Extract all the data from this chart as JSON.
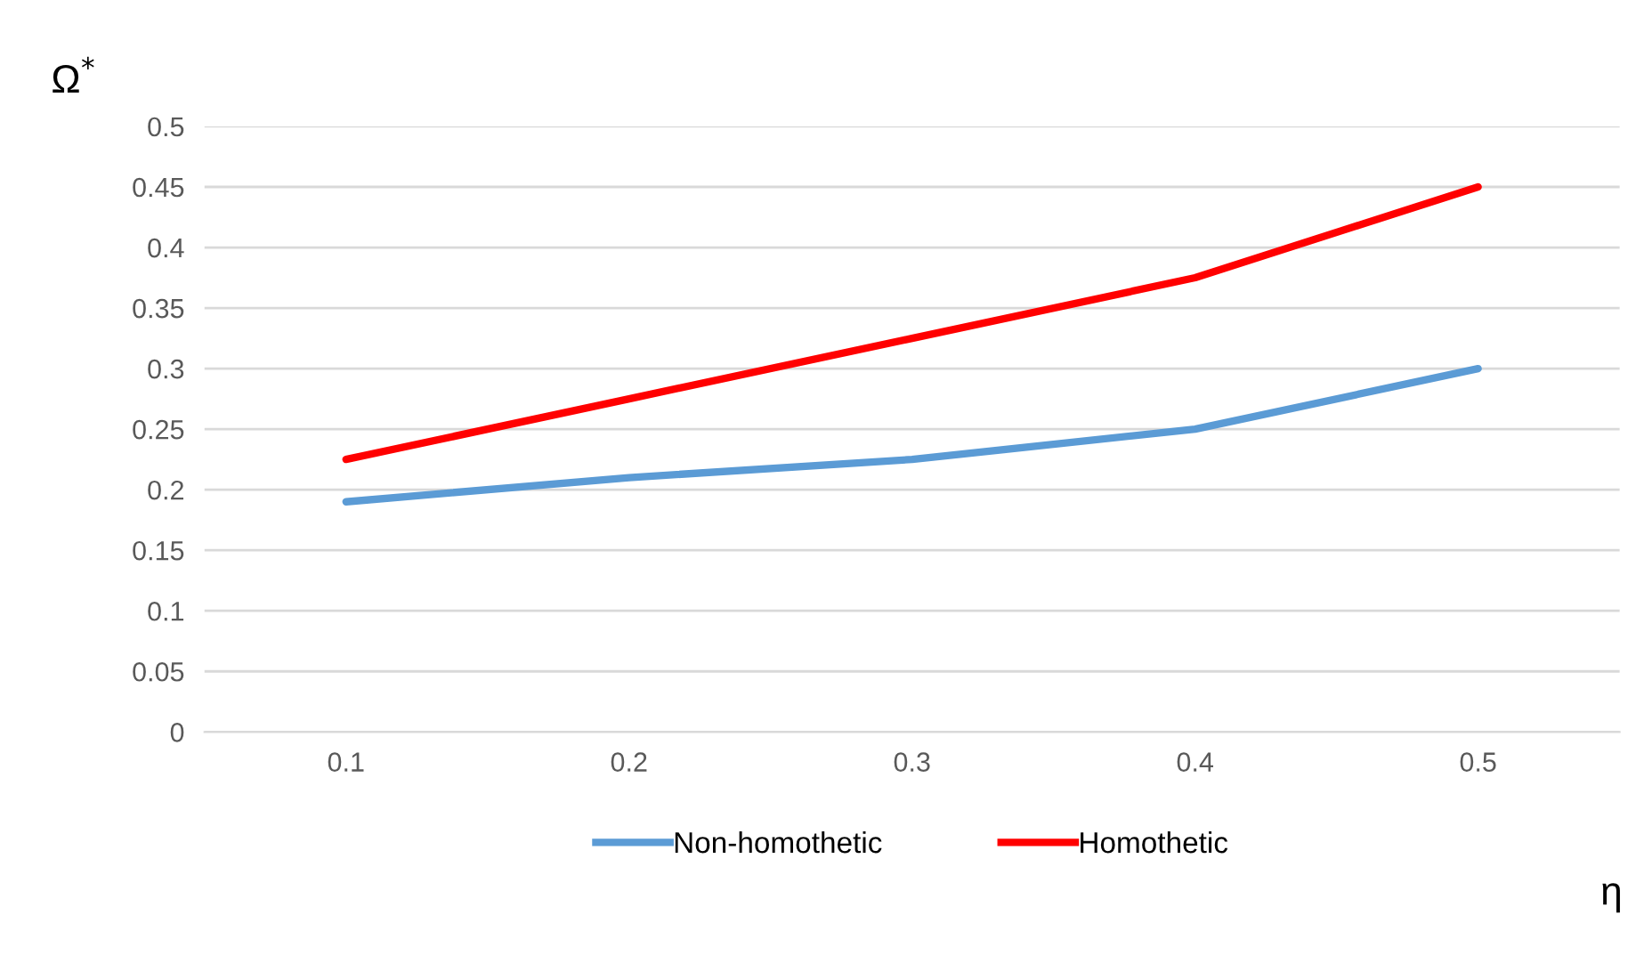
{
  "chart_data": {
    "type": "line",
    "ylabel": "Ω$^{*}$",
    "xlabel": "η",
    "categories": [
      "0.1",
      "0.2",
      "0.3",
      "0.4",
      "0.5"
    ],
    "series": [
      {
        "name": "Non-homothetic",
        "color": "#5b9bd5",
        "values": [
          0.19,
          0.21,
          0.225,
          0.25,
          0.3
        ]
      },
      {
        "name": "Homothetic",
        "color": "#ff0000",
        "values": [
          0.225,
          0.275,
          0.325,
          0.375,
          0.45
        ]
      }
    ],
    "ylim": [
      0,
      0.5
    ],
    "yticks": [
      0,
      0.05,
      0.1,
      0.15,
      0.2,
      0.25,
      0.3,
      0.35,
      0.4,
      0.45,
      0.5
    ],
    "grid": "y",
    "legend": "bottom",
    "marker": "none",
    "line_style": "solid"
  }
}
